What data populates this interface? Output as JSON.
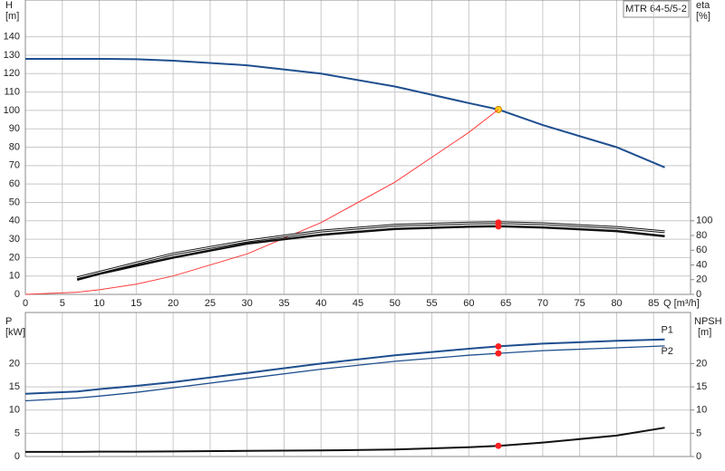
{
  "chart_data": [
    {
      "type": "line",
      "title": "MTR 64-5/5-2",
      "y_label": "H",
      "y_unit": "[m]",
      "y2_label": "eta",
      "y2_unit": "[%]",
      "x_label": "Q [m³/h]",
      "x": [
        0,
        7,
        10,
        15,
        20,
        30,
        40,
        50,
        60,
        64,
        70,
        80,
        86.5
      ],
      "xlim": [
        0,
        90
      ],
      "xticks": [
        0,
        5,
        10,
        15,
        20,
        25,
        30,
        35,
        40,
        45,
        50,
        55,
        60,
        65,
        70,
        75,
        80,
        85
      ],
      "ylim": [
        0,
        160
      ],
      "yticks": [
        0,
        10,
        20,
        30,
        40,
        50,
        60,
        70,
        80,
        90,
        100,
        110,
        120,
        130,
        140
      ],
      "y2lim": [
        0,
        400
      ],
      "y2ticks": [
        0,
        20,
        40,
        60,
        80,
        100
      ],
      "grid": true,
      "duty_point_x": 64,
      "series": [
        {
          "color": "#1f4f8f",
          "width": 2,
          "marker_color": "#ffd21f",
          "values": [
            128,
            128,
            128,
            127.8,
            127,
            124.5,
            120,
            113,
            104,
            100.5,
            92,
            80,
            69
          ]
        },
        {
          "color": "#ff3b3b",
          "width": 1,
          "values": [
            0,
            1.2,
            2.5,
            5.5,
            10,
            22,
            39,
            61,
            88,
            100.5,
            null,
            null,
            null
          ]
        },
        {
          "color": "#111111",
          "width": 3,
          "double": true,
          "axis": "y2",
          "marker_color": "#ff2020",
          "values": [
            null,
            22.5,
            30,
            42.5,
            55,
            72.5,
            86,
            94,
            97,
            97.5,
            96,
            91,
            85
          ]
        },
        {
          "color": "#111111",
          "width": 2.5,
          "axis": "y2",
          "marker_color": "#ff2020",
          "values": [
            null,
            20,
            28,
            39,
            50,
            69,
            81,
            89,
            92,
            92.5,
            91,
            86,
            79
          ]
        }
      ]
    },
    {
      "type": "line",
      "y_label": "P",
      "y_unit": "[kW]",
      "y2_label": "NPSH",
      "y2_unit": "[m]",
      "x": [
        0,
        7,
        10,
        15,
        20,
        30,
        40,
        50,
        60,
        64,
        70,
        80,
        86.5
      ],
      "xlim": [
        0,
        90
      ],
      "ylim": [
        0,
        31
      ],
      "yticks": [
        0,
        5,
        10,
        15,
        20
      ],
      "y2lim": [
        0,
        31
      ],
      "y2ticks": [
        0,
        5,
        10,
        15,
        20
      ],
      "grid": true,
      "duty_point_x": 64,
      "series": [
        {
          "name": "P1",
          "color": "#1f4f8f",
          "width": 2,
          "marker_color": "#ff2020",
          "values": [
            13.5,
            14,
            14.5,
            15.2,
            16,
            18,
            20,
            21.8,
            23.2,
            23.7,
            24.3,
            24.9,
            25.2
          ]
        },
        {
          "name": "P2",
          "color": "#1f4f8f",
          "width": 1.3,
          "marker_color": "#ff2020",
          "values": [
            12,
            12.6,
            13,
            13.8,
            14.8,
            16.8,
            18.8,
            20.5,
            21.8,
            22.2,
            22.8,
            23.4,
            23.8
          ]
        },
        {
          "color": "#111111",
          "width": 2,
          "axis": "y2",
          "marker_color": "#ff2020",
          "values": [
            1,
            1,
            1.05,
            1.05,
            1.1,
            1.2,
            1.3,
            1.5,
            2,
            2.3,
            3,
            4.5,
            6.2
          ]
        }
      ]
    }
  ]
}
